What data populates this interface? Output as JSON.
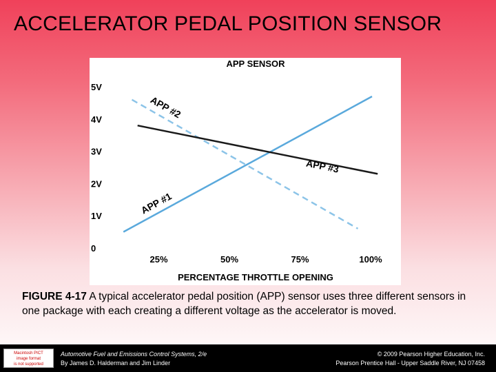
{
  "slide": {
    "title": "ACCELERATOR PEDAL POSITION SENSOR"
  },
  "chart_data": {
    "type": "line",
    "title": "APP SENSOR",
    "xlabel": "PERCENTAGE THROTTLE OPENING",
    "ylabel": "",
    "xlim": [
      0,
      100
    ],
    "ylim": [
      0,
      5
    ],
    "x_ticks": [
      "25%",
      "50%",
      "75%",
      "100%"
    ],
    "x_tick_values": [
      25,
      50,
      75,
      100
    ],
    "y_ticks": [
      "0",
      "1V",
      "2V",
      "3V",
      "4V",
      "5V"
    ],
    "y_tick_values": [
      0,
      1,
      2,
      3,
      4,
      5
    ],
    "grid": false,
    "series": [
      {
        "name": "APP #1",
        "style": "solid",
        "color": "#5aa9dc",
        "x": [
          12,
          100
        ],
        "y": [
          0.5,
          4.7
        ]
      },
      {
        "name": "APP #2",
        "style": "dashed",
        "color": "#8cc4e8",
        "x": [
          15,
          95
        ],
        "y": [
          4.6,
          0.6
        ]
      },
      {
        "name": "APP #3",
        "style": "solid",
        "color": "#1a1a1a",
        "x": [
          17,
          102
        ],
        "y": [
          3.8,
          2.3
        ]
      }
    ]
  },
  "caption": {
    "label": "FIGURE 4-17",
    "text": " A typical accelerator pedal position (APP) sensor uses three different sensors in one package with each creating a different voltage as the accelerator is moved."
  },
  "footer": {
    "badge_lines": [
      "Macintosh PICT",
      "image format",
      "is not supported"
    ],
    "book_title": "Automotive Fuel and Emissions Control Systems, 2/e",
    "authors": "By James D. Halderman and Jim Linder",
    "copyright": "© 2009 Pearson Higher Education, Inc.",
    "publisher": "Pearson Prentice Hall - Upper Saddle River, NJ 07458"
  }
}
